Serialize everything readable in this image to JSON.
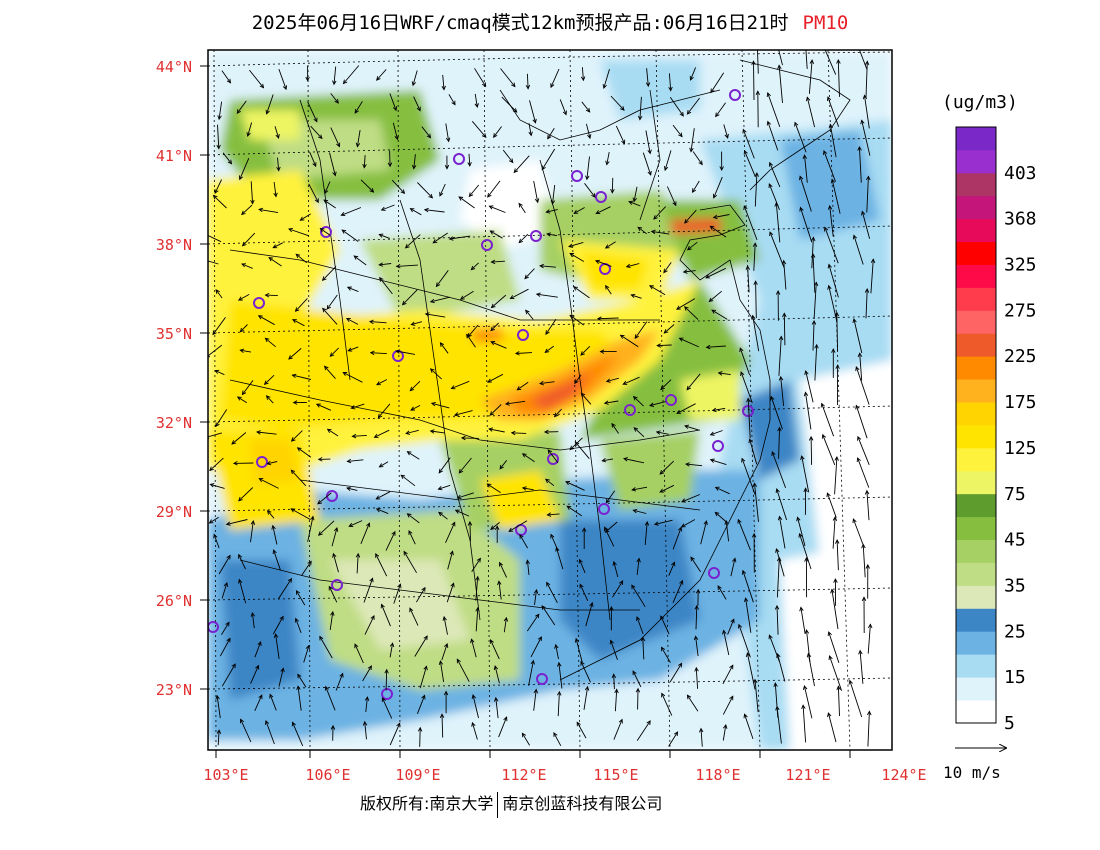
{
  "title": {
    "main": "2025年06月16日WRF/cmaq模式12km预报产品:06月16日21时",
    "pollutant": "PM10",
    "pollutant_color": "#e8202a"
  },
  "map": {
    "lat_labels": [
      "44°N",
      "41°N",
      "38°N",
      "35°N",
      "32°N",
      "29°N",
      "26°N",
      "23°N"
    ],
    "lon_labels": [
      "103°E",
      "106°E",
      "109°E",
      "112°E",
      "115°E",
      "118°E",
      "121°E",
      "124°E"
    ],
    "label_color": "#e03030"
  },
  "colorbar": {
    "unit": "(ug/m3)",
    "levels": [
      {
        "color": "#ffffff",
        "label": "5"
      },
      {
        "color": "#dff3fb",
        "label": ""
      },
      {
        "color": "#a8dcf3",
        "label": "15"
      },
      {
        "color": "#6cb2e3",
        "label": ""
      },
      {
        "color": "#3c86c6",
        "label": "25"
      },
      {
        "color": "#dde8b8",
        "label": ""
      },
      {
        "color": "#bfdd84",
        "label": "35"
      },
      {
        "color": "#a6d064",
        "label": ""
      },
      {
        "color": "#86bf40",
        "label": "45"
      },
      {
        "color": "#5e9c2e",
        "label": ""
      },
      {
        "color": "#eef564",
        "label": "75"
      },
      {
        "color": "#fff23c",
        "label": ""
      },
      {
        "color": "#ffe400",
        "label": "125"
      },
      {
        "color": "#ffd400",
        "label": ""
      },
      {
        "color": "#ffb11e",
        "label": "175"
      },
      {
        "color": "#ff8a00",
        "label": ""
      },
      {
        "color": "#ef5a2a",
        "label": "225"
      },
      {
        "color": "#ff6464",
        "label": ""
      },
      {
        "color": "#ff3c4c",
        "label": "275"
      },
      {
        "color": "#ff0a48",
        "label": ""
      },
      {
        "color": "#ff0000",
        "label": "325"
      },
      {
        "color": "#e80a5a",
        "label": ""
      },
      {
        "color": "#c4167a",
        "label": "368"
      },
      {
        "color": "#ad3565",
        "label": ""
      },
      {
        "color": "#9a2fcf",
        "label": "403"
      },
      {
        "color": "#7a28c8",
        "label": ""
      }
    ]
  },
  "wind_reference": {
    "label": "10 m/s"
  },
  "copyright": {
    "left": "版权所有:南京大学",
    "right": "南京创蓝科技有限公司"
  }
}
